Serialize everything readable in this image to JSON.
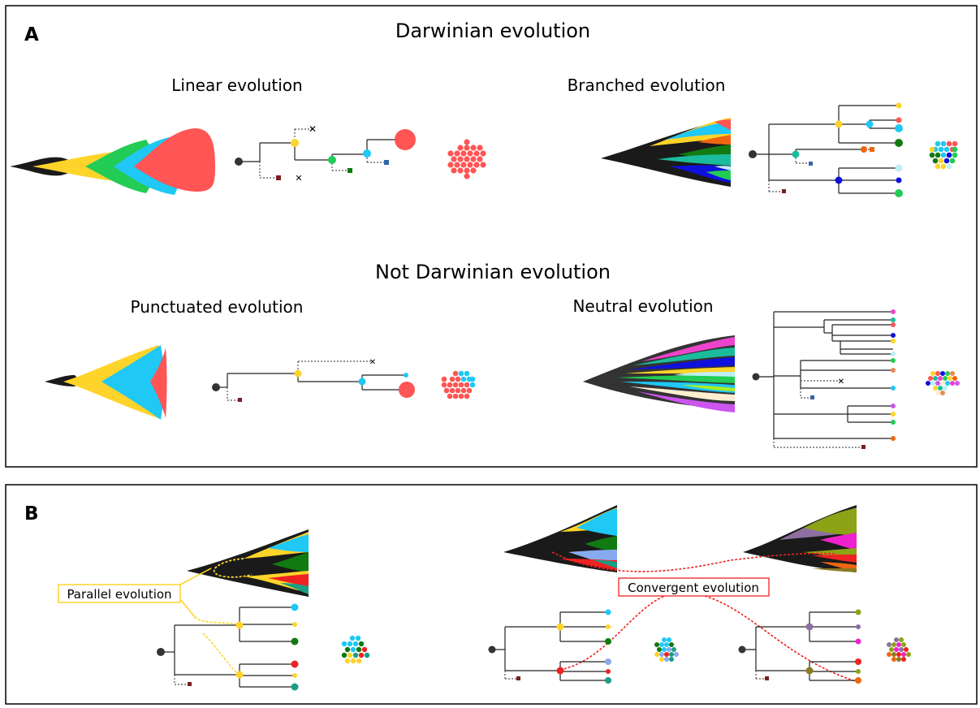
{
  "panel_a": {
    "letter": "A",
    "title_darwinian": "Darwinian  evolution",
    "title_not_darwinian": "Not Darwinian evolution",
    "linear": "Linear  evolution",
    "branched": "Branched  evolution",
    "punctuated": "Punctuated evolution",
    "neutral": "Neutral evolution"
  },
  "panel_b": {
    "letter": "B",
    "parallel": "Parallel evolution",
    "convergent": "Convergent evolution"
  },
  "colors": {
    "red": "#FF5555",
    "yellow": "#FFD42A",
    "blue": "#1FC8F5",
    "green": "#22CC55",
    "dark_green": "#117A11",
    "black": "#1A1A1A",
    "navy": "#1010DD",
    "teal": "#1ABC9C",
    "orange": "#EE6611",
    "pink": "#EE44CC",
    "olive": "#8BA315",
    "purple": "#8E6FA0",
    "panel_b_red": "#EE2222",
    "parallel_line": "#FFD42A",
    "convergent_line": "#EE2222"
  }
}
